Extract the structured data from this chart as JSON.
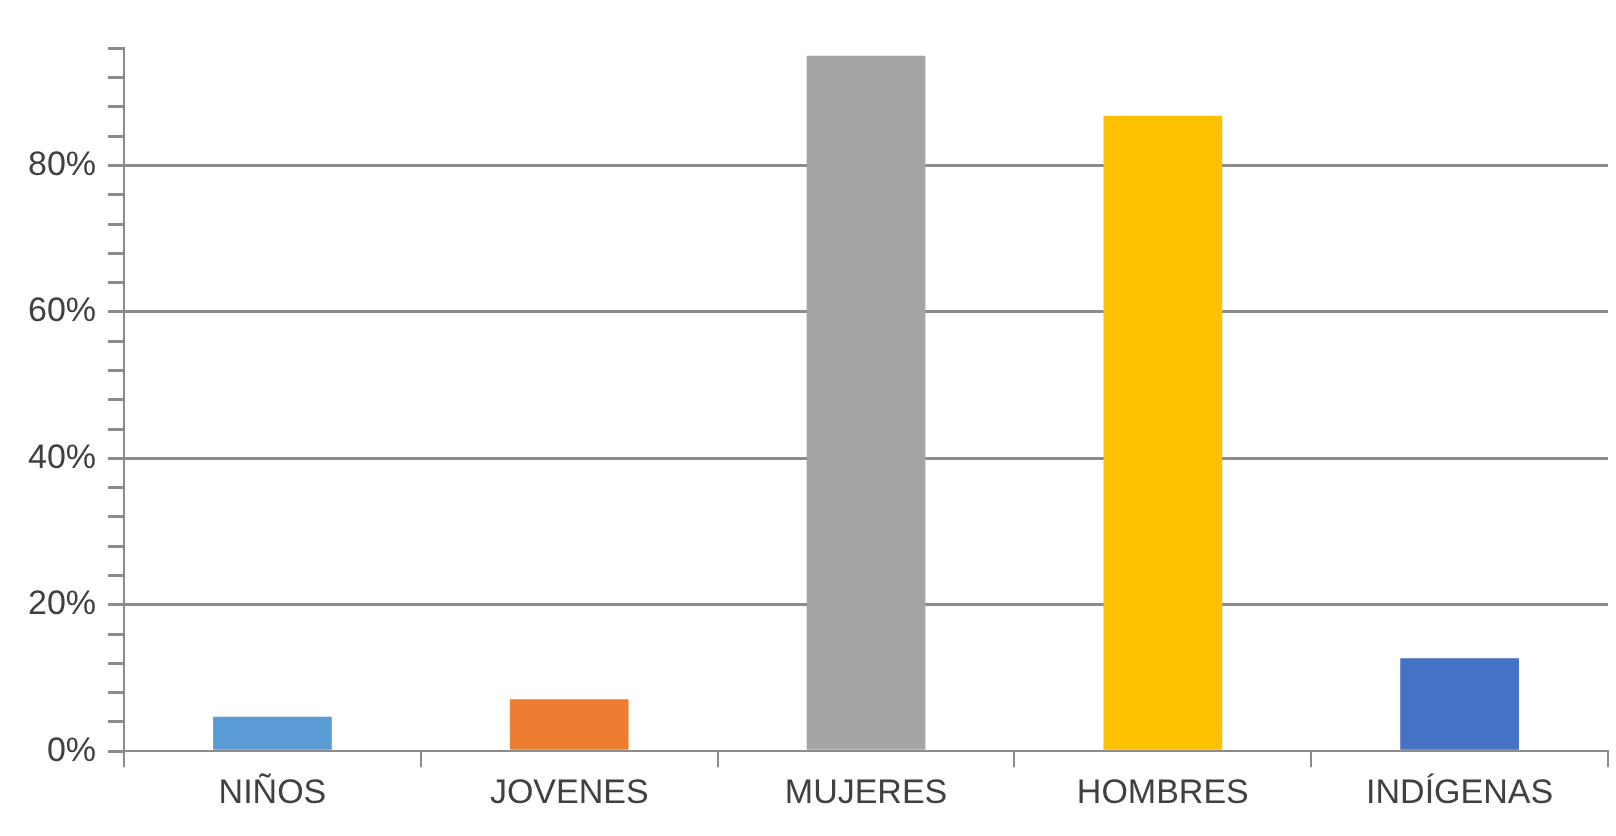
{
  "chart_data": {
    "type": "bar",
    "categories": [
      "NIÑOS",
      "JOVENES",
      "MUJERES",
      "HOMBRES",
      "INDÍGENAS"
    ],
    "values": [
      4.7,
      7.1,
      95,
      86.8,
      12.7
    ],
    "colors": [
      "#5b9bd5",
      "#ed7d31",
      "#a5a5a5",
      "#ffc000",
      "#4472c4"
    ],
    "ylim": [
      0,
      96
    ],
    "yticks": [
      {
        "value": 0,
        "label": "0%"
      },
      {
        "value": 4,
        "label": null
      },
      {
        "value": 8,
        "label": null
      },
      {
        "value": 12,
        "label": null
      },
      {
        "value": 16,
        "label": null
      },
      {
        "value": 20,
        "label": "20%"
      },
      {
        "value": 24,
        "label": null
      },
      {
        "value": 28,
        "label": null
      },
      {
        "value": 32,
        "label": null
      },
      {
        "value": 36,
        "label": null
      },
      {
        "value": 40,
        "label": "40%"
      },
      {
        "value": 44,
        "label": null
      },
      {
        "value": 48,
        "label": null
      },
      {
        "value": 52,
        "label": null
      },
      {
        "value": 56,
        "label": null
      },
      {
        "value": 60,
        "label": "60%"
      },
      {
        "value": 64,
        "label": null
      },
      {
        "value": 68,
        "label": null
      },
      {
        "value": 72,
        "label": null
      },
      {
        "value": 76,
        "label": null
      },
      {
        "value": 80,
        "label": "80%"
      },
      {
        "value": 84,
        "label": null
      },
      {
        "value": 88,
        "label": null
      },
      {
        "value": 92,
        "label": null
      },
      {
        "value": 96,
        "label": null
      }
    ],
    "grid": "y"
  }
}
